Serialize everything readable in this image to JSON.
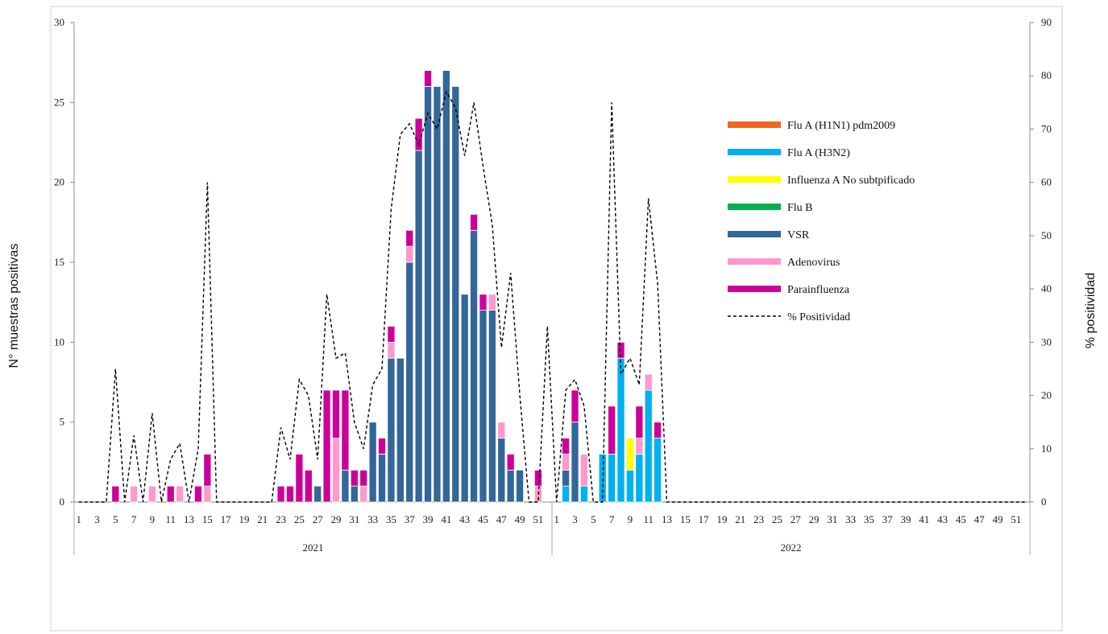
{
  "chart_data": {
    "type": "bar",
    "stacked": true,
    "ylabel": "N° muestras positivas",
    "y2label": "% positividad",
    "ylim": [
      0,
      30
    ],
    "y_ticks": [
      "0",
      "5",
      "10",
      "15",
      "20",
      "25",
      "30"
    ],
    "y2lim": [
      0,
      90
    ],
    "y2_ticks": [
      "0",
      "10",
      "20",
      "30",
      "40",
      "50",
      "60",
      "70",
      "80",
      "90"
    ],
    "grid": false,
    "legend_position": "right",
    "years": [
      {
        "label": "2021",
        "weeks": 52
      },
      {
        "label": "2022",
        "weeks": 52
      }
    ],
    "series": [
      {
        "name": "Flu A (H1N1) pdm2009",
        "color": "#F26522",
        "values": [
          [],
          []
        ]
      },
      {
        "name": "Flu A (H3N2)",
        "color": "#00B0F0",
        "values": [
          [],
          [
            0,
            1,
            0,
            1,
            0,
            3,
            3,
            9,
            2,
            3,
            7,
            4
          ]
        ]
      },
      {
        "name": "Influenza A No subtpificado",
        "color": "#FFFF00",
        "values": [
          [],
          [
            0,
            0,
            0,
            0,
            0,
            0,
            0,
            0,
            2,
            0,
            0,
            0
          ]
        ]
      },
      {
        "name": "Flu B",
        "color": "#00B050",
        "values": [
          [],
          []
        ]
      },
      {
        "name": "VSR",
        "color": "#336699",
        "values": [
          [
            0,
            0,
            0,
            0,
            0,
            0,
            0,
            0,
            0,
            0,
            0,
            0,
            0,
            0,
            0,
            0,
            0,
            0,
            0,
            0,
            0,
            0,
            0,
            0,
            0,
            0,
            1,
            0,
            0,
            2,
            1,
            0,
            5,
            3,
            9,
            9,
            15,
            22,
            26,
            26,
            27,
            26,
            13,
            17,
            12,
            12,
            4,
            2,
            2,
            0,
            0,
            0
          ],
          [
            0,
            1,
            5,
            0,
            0,
            0,
            0,
            0,
            0,
            0,
            0,
            0
          ]
        ]
      },
      {
        "name": "Adenovirus",
        "color": "#FF99CC",
        "values": [
          [
            0,
            0,
            0,
            0,
            0,
            0,
            1,
            0,
            1,
            0,
            0,
            1,
            0,
            0,
            1,
            0,
            0,
            0,
            0,
            0,
            0,
            0,
            0,
            0,
            0,
            0,
            0,
            0,
            4,
            0,
            0,
            1,
            0,
            0,
            1,
            0,
            1,
            0,
            0,
            0,
            0,
            0,
            0,
            0,
            0,
            1,
            1,
            0,
            0,
            0,
            1,
            0
          ],
          [
            0,
            1,
            0,
            2,
            0,
            0,
            0,
            0,
            0,
            1,
            1,
            0
          ]
        ]
      },
      {
        "name": "Parainfluenza",
        "color": "#CC0099",
        "values": [
          [
            0,
            0,
            0,
            0,
            1,
            0,
            0,
            0,
            0,
            0,
            1,
            0,
            0,
            1,
            2,
            0,
            0,
            0,
            0,
            0,
            0,
            0,
            1,
            1,
            3,
            2,
            0,
            7,
            3,
            5,
            1,
            1,
            0,
            1,
            1,
            0,
            1,
            2,
            1,
            0,
            0,
            0,
            0,
            1,
            1,
            0,
            0,
            1,
            0,
            0,
            1,
            0
          ],
          [
            0,
            1,
            2,
            0,
            0,
            0,
            3,
            1,
            0,
            2,
            0,
            1
          ]
        ]
      },
      {
        "name": "% Positividad",
        "type": "line",
        "axis": "right",
        "dash": true,
        "color": "#000000",
        "values": [
          [
            0,
            0,
            0,
            0,
            25,
            0,
            12.5,
            0,
            16.7,
            0,
            8,
            11,
            0,
            10,
            60,
            0,
            0,
            0,
            0,
            0,
            0,
            0,
            14,
            8,
            23,
            20,
            8,
            39,
            27,
            28,
            15,
            10,
            22,
            25,
            55,
            69,
            71,
            67,
            73,
            70,
            77,
            74,
            65,
            75,
            63,
            52,
            29,
            43,
            20,
            0,
            0,
            33
          ],
          [
            0,
            21,
            23,
            18,
            0,
            0,
            75,
            24,
            27,
            22,
            57,
            41
          ]
        ]
      }
    ]
  }
}
